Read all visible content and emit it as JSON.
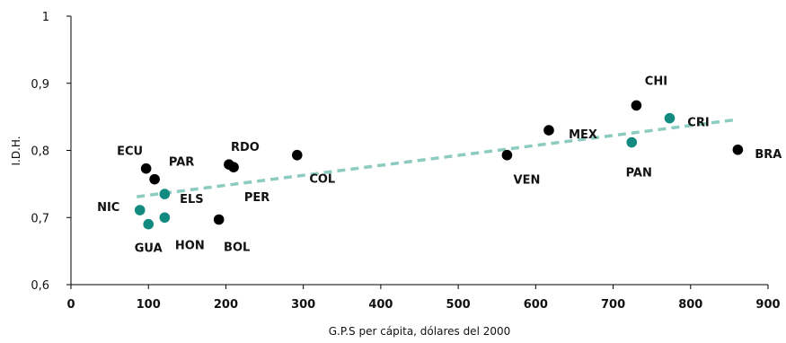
{
  "chart_data": {
    "type": "scatter",
    "xlabel": "G.P.S per cápita, dólares del 2000",
    "ylabel": "I.D.H.",
    "xlim": [
      0,
      900
    ],
    "ylim": [
      0.6,
      1
    ],
    "x_ticks": [
      0,
      100,
      200,
      300,
      400,
      500,
      600,
      700,
      800,
      900
    ],
    "y_ticks": [
      "0,6",
      "0,7",
      "0,8",
      "0,9",
      "1"
    ],
    "y_tick_values": [
      0.6,
      0.7,
      0.8,
      0.9,
      1.0
    ],
    "grid": false,
    "legend": "none",
    "colors": {
      "black": "#000000",
      "teal": "#138a80",
      "trend": "#8ccbbf"
    },
    "points": [
      {
        "label": "ECU",
        "x": 97,
        "y": 0.773,
        "color": "black",
        "lx": -18,
        "ly": -20
      },
      {
        "label": "PAR",
        "x": 108,
        "y": 0.757,
        "color": "black",
        "lx": 30,
        "ly": -20
      },
      {
        "label": "ELS",
        "x": 121,
        "y": 0.735,
        "color": "teal",
        "lx": 30,
        "ly": 5
      },
      {
        "label": "NIC",
        "x": 89,
        "y": 0.711,
        "color": "teal",
        "lx": -35,
        "ly": -4
      },
      {
        "label": "GUA",
        "x": 100,
        "y": 0.69,
        "color": "teal",
        "lx": 0,
        "ly": 26
      },
      {
        "label": "HON",
        "x": 121,
        "y": 0.7,
        "color": "teal",
        "lx": 28,
        "ly": 30
      },
      {
        "label": "RDO",
        "x": 204,
        "y": 0.779,
        "color": "black",
        "lx": 18,
        "ly": -20
      },
      {
        "label": "PER",
        "x": 210,
        "y": 0.775,
        "color": "black",
        "lx": 26,
        "ly": 33
      },
      {
        "label": "BOL",
        "x": 191,
        "y": 0.697,
        "color": "black",
        "lx": 20,
        "ly": 30
      },
      {
        "label": "COL",
        "x": 292,
        "y": 0.793,
        "color": "black",
        "lx": 28,
        "ly": 26
      },
      {
        "label": "VEN",
        "x": 563,
        "y": 0.793,
        "color": "black",
        "lx": 22,
        "ly": 27
      },
      {
        "label": "MEX",
        "x": 617,
        "y": 0.83,
        "color": "black",
        "lx": 38,
        "ly": 4
      },
      {
        "label": "CHI",
        "x": 730,
        "y": 0.867,
        "color": "black",
        "lx": 22,
        "ly": -28
      },
      {
        "label": "CRI",
        "x": 773,
        "y": 0.848,
        "color": "teal",
        "lx": 32,
        "ly": 4
      },
      {
        "label": "PAN",
        "x": 724,
        "y": 0.812,
        "color": "teal",
        "lx": 8,
        "ly": 33
      },
      {
        "label": "BRA",
        "x": 861,
        "y": 0.801,
        "color": "black",
        "lx": 34,
        "ly": 4
      }
    ],
    "trendline": {
      "x": [
        85,
        860
      ],
      "y": [
        0.731,
        0.846
      ],
      "style": "dashed"
    }
  }
}
